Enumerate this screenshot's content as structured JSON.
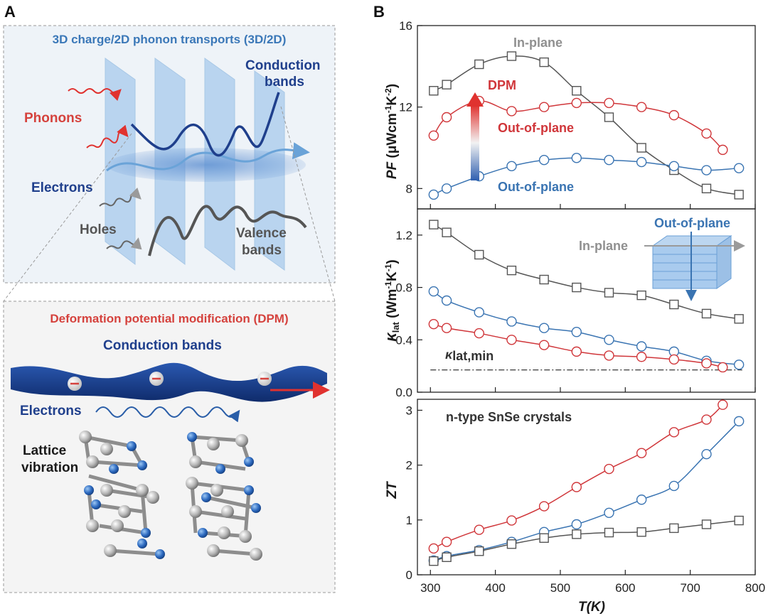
{
  "panel_a": {
    "letter": "A",
    "top_title": "3D charge/2D phonon transports (3D/2D)",
    "labels": {
      "phonons": "Phonons",
      "conduction_bands": [
        "Conduction",
        "bands"
      ],
      "electrons": "Electrons",
      "holes": "Holes",
      "valence_bands": [
        "Valence",
        "bands"
      ]
    },
    "bottom_title": "Deformation potential modification (DPM)",
    "bottom_labels": {
      "conduction_bands": "Conduction bands",
      "electrons": "Electrons",
      "lattice_vibration": [
        "Lattice",
        "vibration"
      ]
    }
  },
  "panel_b": {
    "letter": "B",
    "x_axis_title": "T(K)",
    "colors": {
      "in_plane": "#555555",
      "dpm": "#d0363a",
      "out_of_plane": "#3a74b2"
    }
  },
  "chart_data": [
    {
      "type": "line",
      "title": "",
      "ylabel": "PF (μWcm⁻¹K⁻²)",
      "xlabel": "T(K)",
      "xlim": [
        280,
        800
      ],
      "ylim": [
        7,
        16
      ],
      "x_ticks": [
        300,
        400,
        500,
        600,
        700,
        800
      ],
      "y_ticks": [
        8,
        12,
        16
      ],
      "series": [
        {
          "name": "In-plane",
          "marker": "square",
          "x": [
            305,
            325,
            375,
            425,
            475,
            525,
            575,
            625,
            675,
            725,
            775
          ],
          "values": [
            12.8,
            13.1,
            14.1,
            14.5,
            14.2,
            12.8,
            11.5,
            10.0,
            8.9,
            8.0,
            7.7
          ]
        },
        {
          "name": "DPM Out-of-plane",
          "marker": "circle",
          "x": [
            305,
            325,
            375,
            425,
            475,
            525,
            575,
            625,
            675,
            725,
            750
          ],
          "values": [
            10.6,
            11.5,
            12.3,
            11.8,
            12.0,
            12.2,
            12.2,
            12.0,
            11.6,
            10.7,
            9.9
          ]
        },
        {
          "name": "Out-of-plane",
          "marker": "circle",
          "x": [
            305,
            325,
            375,
            425,
            475,
            525,
            575,
            625,
            675,
            725,
            775
          ],
          "values": [
            7.7,
            8.0,
            8.6,
            9.1,
            9.4,
            9.5,
            9.4,
            9.3,
            9.1,
            8.9,
            9.0
          ]
        }
      ],
      "annotations": [
        "In-plane",
        "DPM",
        "Out-of-plane",
        "Out-of-plane"
      ]
    },
    {
      "type": "line",
      "title": "",
      "ylabel": "κlat (Wm⁻¹K⁻¹)",
      "xlabel": "T(K)",
      "xlim": [
        280,
        800
      ],
      "ylim": [
        0.0,
        1.4
      ],
      "x_ticks": [
        300,
        400,
        500,
        600,
        700,
        800
      ],
      "y_ticks": [
        "0.0",
        "0.4",
        "0.8",
        "1.2"
      ],
      "series": [
        {
          "name": "In-plane",
          "marker": "square",
          "x": [
            305,
            325,
            375,
            425,
            475,
            525,
            575,
            625,
            675,
            725,
            775
          ],
          "values": [
            1.28,
            1.22,
            1.05,
            0.93,
            0.86,
            0.8,
            0.76,
            0.74,
            0.67,
            0.6,
            0.56
          ]
        },
        {
          "name": "Out-of-plane",
          "marker": "circle",
          "x": [
            305,
            325,
            375,
            425,
            475,
            525,
            575,
            625,
            675,
            725,
            775
          ],
          "values": [
            0.77,
            0.7,
            0.61,
            0.54,
            0.49,
            0.46,
            0.4,
            0.35,
            0.31,
            0.24,
            0.21
          ]
        },
        {
          "name": "DPM Out-of-plane",
          "marker": "circle",
          "x": [
            305,
            325,
            375,
            425,
            475,
            525,
            575,
            625,
            675,
            725,
            750
          ],
          "values": [
            0.52,
            0.49,
            0.45,
            0.4,
            0.36,
            0.31,
            0.28,
            0.27,
            0.25,
            0.22,
            0.19
          ]
        }
      ],
      "kmin_value": 0.17,
      "annotations": [
        "In-plane",
        "Out-of-plane",
        "κlat,min"
      ]
    },
    {
      "type": "line",
      "title": "n-type SnSe crystals",
      "ylabel": "ZT",
      "xlabel": "T(K)",
      "xlim": [
        280,
        800
      ],
      "ylim": [
        0,
        3.2
      ],
      "x_ticks": [
        300,
        400,
        500,
        600,
        700,
        800
      ],
      "y_ticks": [
        0,
        1,
        2,
        3
      ],
      "series": [
        {
          "name": "DPM Out-of-plane",
          "marker": "circle",
          "x": [
            305,
            325,
            375,
            425,
            475,
            525,
            575,
            625,
            675,
            725,
            750
          ],
          "values": [
            0.48,
            0.6,
            0.82,
            0.99,
            1.25,
            1.6,
            1.93,
            2.22,
            2.6,
            2.83,
            3.1
          ]
        },
        {
          "name": "Out-of-plane",
          "marker": "circle",
          "x": [
            305,
            325,
            375,
            425,
            475,
            525,
            575,
            625,
            675,
            725,
            775
          ],
          "values": [
            0.26,
            0.34,
            0.45,
            0.6,
            0.78,
            0.92,
            1.13,
            1.37,
            1.62,
            2.2,
            2.8
          ]
        },
        {
          "name": "In-plane",
          "marker": "square",
          "x": [
            305,
            325,
            375,
            425,
            475,
            525,
            575,
            625,
            675,
            725,
            775
          ],
          "values": [
            0.25,
            0.32,
            0.43,
            0.56,
            0.67,
            0.74,
            0.77,
            0.78,
            0.85,
            0.92,
            0.99
          ]
        }
      ]
    }
  ]
}
